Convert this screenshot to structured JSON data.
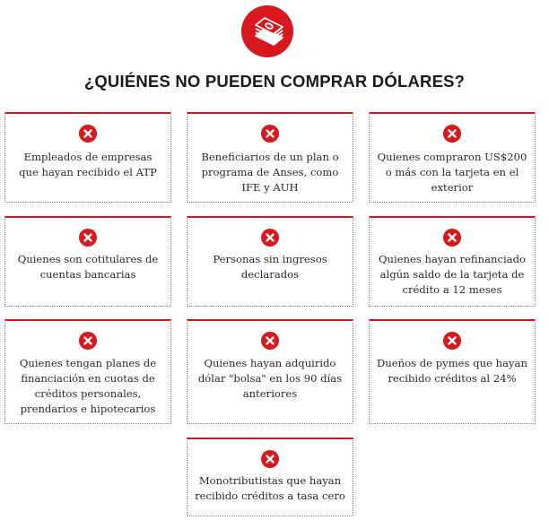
{
  "header": {
    "icon": "money-stack-icon",
    "title": "¿QUIÉNES NO PUEDEN COMPRAR DÓLARES?"
  },
  "colors": {
    "accent": "#d8181c",
    "border": "#8a8a8a",
    "text": "#2a2a2a"
  },
  "cards": [
    {
      "text": "Empleados de empresas que hayan recibido el ATP",
      "icon": "close-icon"
    },
    {
      "text": "Beneficiarios de un plan o programa de Anses, como IFE y AUH",
      "icon": "close-icon"
    },
    {
      "text": "Quienes compraron US$200 o más con la tarjeta en el exterior",
      "icon": "close-icon"
    },
    {
      "text": "Quienes son cotitulares de cuentas bancarias",
      "icon": "close-icon"
    },
    {
      "text": "Personas sin ingresos declarados",
      "icon": "close-icon"
    },
    {
      "text": "Quienes hayan refinanciado algún saldo de la tarjeta de crédito a 12 meses",
      "icon": "close-icon"
    },
    {
      "text": "Quienes tengan planes de financiación en cuotas de créditos personales, prendarios e hipotecarios",
      "icon": "close-icon"
    },
    {
      "text": "Quienes hayan adquirido dólar \"bolsa\" en los 90 días anteriores",
      "icon": "close-icon"
    },
    {
      "text": "Dueños de pymes que hayan recibido créditos al 24%",
      "icon": "close-icon"
    },
    {
      "text": "Monotributistas que hayan recibido créditos a tasa cero",
      "icon": "close-icon"
    }
  ]
}
